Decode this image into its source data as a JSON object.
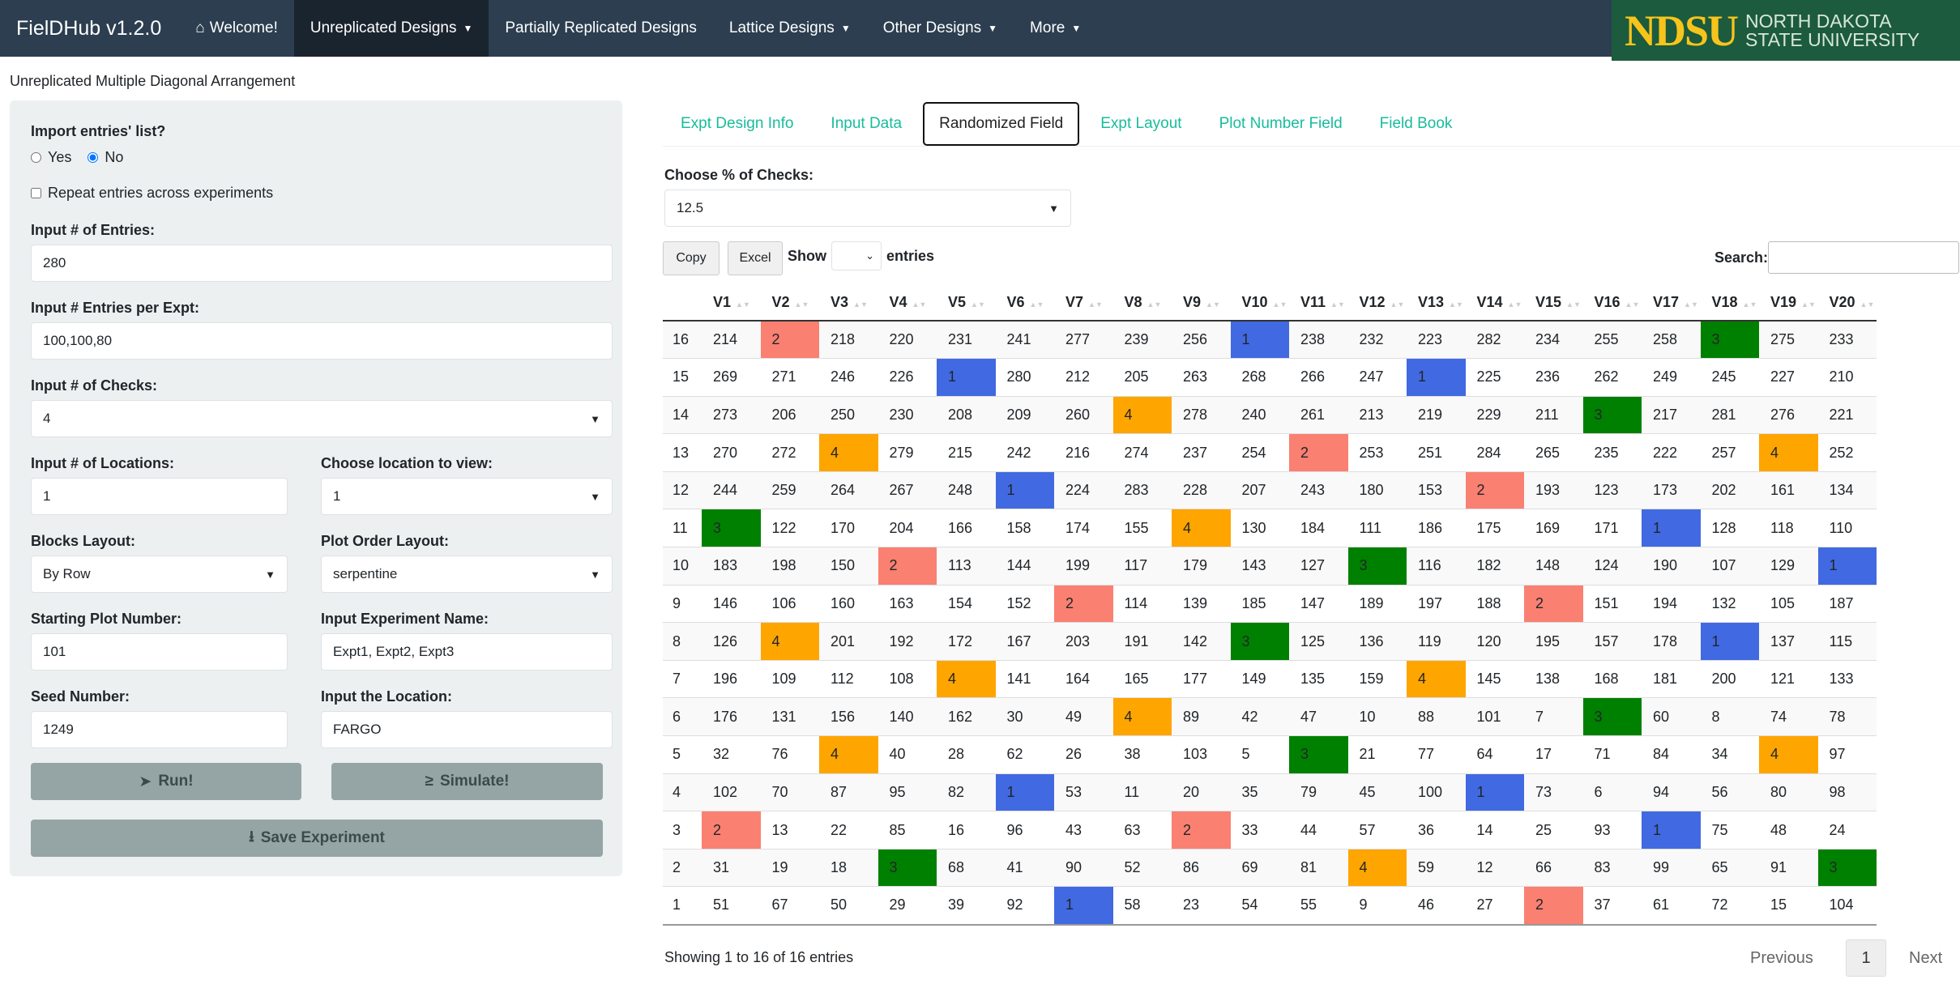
{
  "navbar": {
    "brand": "FielDHub v1.2.0",
    "items": [
      {
        "label": "Welcome!",
        "icon": "home-icon"
      },
      {
        "label": "Unreplicated Designs",
        "dropdown": true,
        "active": true
      },
      {
        "label": "Partially Replicated Designs"
      },
      {
        "label": "Lattice Designs",
        "dropdown": true
      },
      {
        "label": "Other Designs",
        "dropdown": true
      },
      {
        "label": "More",
        "dropdown": true
      }
    ],
    "logo": {
      "abbr": "NDSU",
      "line1": "NORTH DAKOTA",
      "line2": "STATE UNIVERSITY"
    }
  },
  "page_subtitle": "Unreplicated Multiple Diagonal Arrangement",
  "sidebar": {
    "import_label": "Import entries' list?",
    "radio_yes": "Yes",
    "radio_no": "No",
    "radio_selected": "No",
    "repeat_label": "Repeat entries across experiments",
    "repeat_checked": false,
    "entries_label": "Input # of Entries:",
    "entries_value": "280",
    "per_expt_label": "Input # Entries per Expt:",
    "per_expt_value": "100,100,80",
    "checks_label": "Input # of Checks:",
    "checks_value": "4",
    "locations_label": "Input # of Locations:",
    "locations_value": "1",
    "location_view_label": "Choose location to view:",
    "location_view_value": "1",
    "blocks_label": "Blocks Layout:",
    "blocks_value": "By Row",
    "plot_order_label": "Plot Order Layout:",
    "plot_order_value": "serpentine",
    "start_plot_label": "Starting Plot Number:",
    "start_plot_value": "101",
    "expt_name_label": "Input Experiment Name:",
    "expt_name_value": "Expt1, Expt2, Expt3",
    "seed_label": "Seed Number:",
    "seed_value": "1249",
    "location_label": "Input the Location:",
    "location_value": "FARGO",
    "run_label": "Run!",
    "simulate_label": "Simulate!",
    "save_label": "Save Experiment"
  },
  "tabs": [
    "Expt Design Info",
    "Input Data",
    "Randomized Field",
    "Expt Layout",
    "Plot Number Field",
    "Field Book"
  ],
  "active_tab": "Randomized Field",
  "checks_pct": {
    "label": "Choose % of Checks:",
    "value": "12.5"
  },
  "table_controls": {
    "copy": "Copy",
    "excel": "Excel",
    "show": "Show",
    "entries": "entries",
    "search": "Search:",
    "search_value": ""
  },
  "check_colors": {
    "1": "#4169e1",
    "2": "#fa8072",
    "3": "#008000",
    "4": "#ffa500"
  },
  "table": {
    "columns": [
      "V1",
      "V2",
      "V3",
      "V4",
      "V5",
      "V6",
      "V7",
      "V8",
      "V9",
      "V10",
      "V11",
      "V12",
      "V13",
      "V14",
      "V15",
      "V16",
      "V17",
      "V18",
      "V19",
      "V20"
    ],
    "rows": [
      {
        "row": "16",
        "cells": [
          214,
          2,
          218,
          220,
          231,
          241,
          277,
          239,
          256,
          1,
          238,
          232,
          223,
          282,
          234,
          255,
          258,
          3,
          275,
          233
        ]
      },
      {
        "row": "15",
        "cells": [
          269,
          271,
          246,
          226,
          1,
          280,
          212,
          205,
          263,
          268,
          266,
          247,
          1,
          225,
          236,
          262,
          249,
          245,
          227,
          210
        ]
      },
      {
        "row": "14",
        "cells": [
          273,
          206,
          250,
          230,
          208,
          209,
          260,
          4,
          278,
          240,
          261,
          213,
          219,
          229,
          211,
          3,
          217,
          281,
          276,
          221
        ]
      },
      {
        "row": "13",
        "cells": [
          270,
          272,
          4,
          279,
          215,
          242,
          216,
          274,
          237,
          254,
          2,
          253,
          251,
          284,
          265,
          235,
          222,
          257,
          4,
          252
        ]
      },
      {
        "row": "12",
        "cells": [
          244,
          259,
          264,
          267,
          248,
          1,
          224,
          283,
          228,
          207,
          243,
          180,
          153,
          2,
          193,
          123,
          173,
          202,
          161,
          134
        ]
      },
      {
        "row": "11",
        "cells": [
          3,
          122,
          170,
          204,
          166,
          158,
          174,
          155,
          4,
          130,
          184,
          111,
          186,
          175,
          169,
          171,
          1,
          128,
          118,
          110
        ]
      },
      {
        "row": "10",
        "cells": [
          183,
          198,
          150,
          2,
          113,
          144,
          199,
          117,
          179,
          143,
          127,
          3,
          116,
          182,
          148,
          124,
          190,
          107,
          129,
          1
        ]
      },
      {
        "row": "9",
        "cells": [
          146,
          106,
          160,
          163,
          154,
          152,
          2,
          114,
          139,
          185,
          147,
          189,
          197,
          188,
          2,
          151,
          194,
          132,
          105,
          187
        ]
      },
      {
        "row": "8",
        "cells": [
          126,
          4,
          201,
          192,
          172,
          167,
          203,
          191,
          142,
          3,
          125,
          136,
          119,
          120,
          195,
          157,
          178,
          1,
          137,
          115
        ]
      },
      {
        "row": "7",
        "cells": [
          196,
          109,
          112,
          108,
          4,
          141,
          164,
          165,
          177,
          149,
          135,
          159,
          4,
          145,
          138,
          168,
          181,
          200,
          121,
          133
        ]
      },
      {
        "row": "6",
        "cells": [
          176,
          131,
          156,
          140,
          162,
          30,
          49,
          4,
          89,
          42,
          47,
          10,
          88,
          101,
          7,
          3,
          60,
          8,
          74,
          78
        ]
      },
      {
        "row": "5",
        "cells": [
          32,
          76,
          4,
          40,
          28,
          62,
          26,
          38,
          103,
          5,
          3,
          21,
          77,
          64,
          17,
          71,
          84,
          34,
          4,
          97
        ]
      },
      {
        "row": "4",
        "cells": [
          102,
          70,
          87,
          95,
          82,
          1,
          53,
          11,
          20,
          35,
          79,
          45,
          100,
          1,
          73,
          6,
          94,
          56,
          80,
          98
        ]
      },
      {
        "row": "3",
        "cells": [
          2,
          13,
          22,
          85,
          16,
          96,
          43,
          63,
          2,
          33,
          44,
          57,
          36,
          14,
          25,
          93,
          1,
          75,
          48,
          24
        ]
      },
      {
        "row": "2",
        "cells": [
          31,
          19,
          18,
          3,
          68,
          41,
          90,
          52,
          86,
          69,
          81,
          4,
          59,
          12,
          66,
          83,
          99,
          65,
          91,
          3
        ]
      },
      {
        "row": "1",
        "cells": [
          51,
          67,
          50,
          29,
          39,
          92,
          1,
          58,
          23,
          54,
          55,
          9,
          46,
          27,
          2,
          37,
          61,
          72,
          15,
          104
        ]
      }
    ]
  },
  "footer": {
    "info": "Showing 1 to 16 of 16 entries",
    "previous": "Previous",
    "page": "1",
    "next": "Next"
  }
}
